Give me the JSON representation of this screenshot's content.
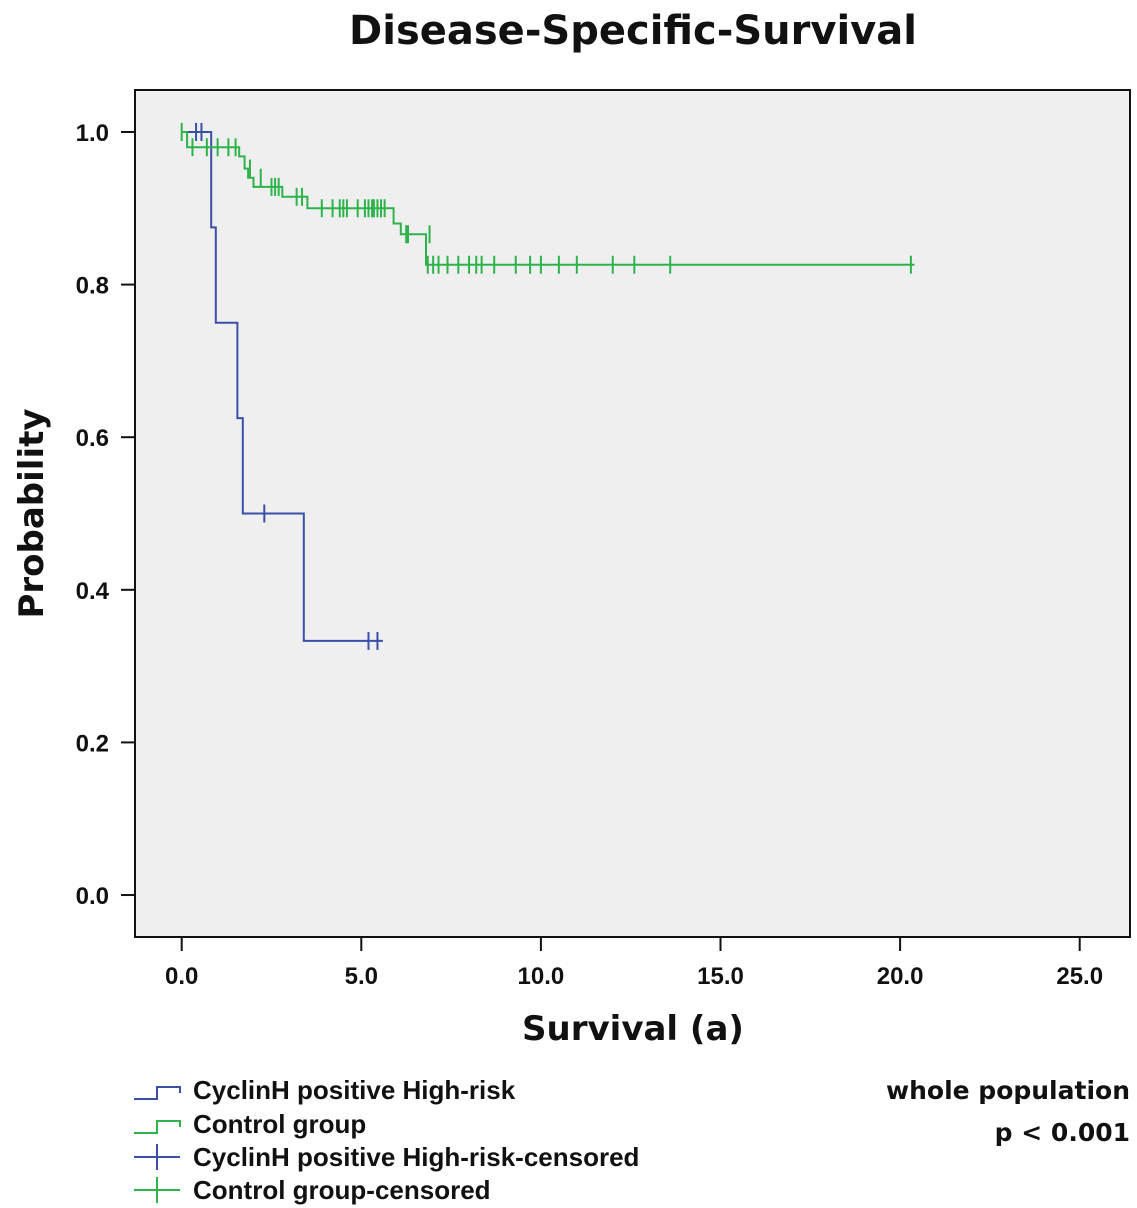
{
  "chart_data": {
    "type": "line",
    "subtype": "kaplan-meier",
    "title": "Disease-Specific-Survival",
    "xlabel": "Survival (a)",
    "ylabel": "Probability",
    "xlim": [
      -1.3,
      26.4
    ],
    "ylim": [
      -0.055,
      1.055
    ],
    "xticks": [
      0,
      5,
      10,
      15,
      20,
      25
    ],
    "xtick_labels": [
      "0.0",
      "5.0",
      "10.0",
      "15.0",
      "20.0",
      "25.0"
    ],
    "yticks": [
      0,
      0.2,
      0.4,
      0.6,
      0.8,
      1.0
    ],
    "ytick_labels": [
      "0.0",
      "0.2",
      "0.4",
      "0.6",
      "0.8",
      "1.0"
    ],
    "grid": false,
    "background": "#efefef",
    "series": [
      {
        "name": "CyclinH positive High-risk",
        "color": "#3a4fa8",
        "steps": [
          [
            0,
            1.0
          ],
          [
            0.82,
            1.0
          ],
          [
            0.82,
            0.875
          ],
          [
            0.95,
            0.875
          ],
          [
            0.95,
            0.75
          ],
          [
            1.55,
            0.75
          ],
          [
            1.55,
            0.625
          ],
          [
            1.7,
            0.625
          ],
          [
            1.7,
            0.5
          ],
          [
            3.4,
            0.5
          ],
          [
            3.4,
            0.333
          ],
          [
            5.6,
            0.333
          ]
        ],
        "censored": [
          [
            0.4,
            1.0
          ],
          [
            0.55,
            1.0
          ],
          [
            2.3,
            0.5
          ],
          [
            5.2,
            0.333
          ],
          [
            5.45,
            0.333
          ]
        ]
      },
      {
        "name": "Control group",
        "color": "#2db34a",
        "steps": [
          [
            0,
            1.0
          ],
          [
            0.15,
            1.0
          ],
          [
            0.15,
            0.98
          ],
          [
            1.6,
            0.98
          ],
          [
            1.6,
            0.968
          ],
          [
            1.75,
            0.968
          ],
          [
            1.75,
            0.952
          ],
          [
            1.85,
            0.952
          ],
          [
            1.85,
            0.94
          ],
          [
            2.0,
            0.94
          ],
          [
            2.0,
            0.928
          ],
          [
            2.8,
            0.928
          ],
          [
            2.8,
            0.915
          ],
          [
            3.5,
            0.915
          ],
          [
            3.5,
            0.9
          ],
          [
            5.9,
            0.9
          ],
          [
            5.9,
            0.88
          ],
          [
            6.1,
            0.88
          ],
          [
            6.1,
            0.866
          ],
          [
            6.8,
            0.866
          ],
          [
            6.8,
            0.826
          ],
          [
            20.4,
            0.826
          ]
        ],
        "censored": [
          [
            0,
            1.0
          ],
          [
            0.3,
            0.98
          ],
          [
            0.7,
            0.98
          ],
          [
            1.0,
            0.98
          ],
          [
            1.3,
            0.98
          ],
          [
            1.5,
            0.98
          ],
          [
            1.9,
            0.952
          ],
          [
            2.2,
            0.94
          ],
          [
            2.5,
            0.928
          ],
          [
            2.6,
            0.928
          ],
          [
            2.7,
            0.928
          ],
          [
            3.2,
            0.915
          ],
          [
            3.35,
            0.915
          ],
          [
            3.9,
            0.9
          ],
          [
            4.2,
            0.9
          ],
          [
            4.4,
            0.9
          ],
          [
            4.5,
            0.9
          ],
          [
            4.6,
            0.9
          ],
          [
            4.9,
            0.9
          ],
          [
            5.1,
            0.9
          ],
          [
            5.2,
            0.9
          ],
          [
            5.3,
            0.9
          ],
          [
            5.35,
            0.9
          ],
          [
            5.45,
            0.9
          ],
          [
            5.55,
            0.9
          ],
          [
            5.65,
            0.9
          ],
          [
            6.25,
            0.866
          ],
          [
            6.3,
            0.866
          ],
          [
            6.9,
            0.866
          ],
          [
            6.85,
            0.826
          ],
          [
            7.0,
            0.826
          ],
          [
            7.15,
            0.826
          ],
          [
            7.4,
            0.826
          ],
          [
            7.7,
            0.826
          ],
          [
            8.0,
            0.826
          ],
          [
            8.2,
            0.826
          ],
          [
            8.35,
            0.826
          ],
          [
            8.7,
            0.826
          ],
          [
            9.3,
            0.826
          ],
          [
            9.7,
            0.826
          ],
          [
            10.0,
            0.826
          ],
          [
            10.5,
            0.826
          ],
          [
            11.0,
            0.826
          ],
          [
            12.0,
            0.826
          ],
          [
            12.6,
            0.826
          ],
          [
            13.6,
            0.826
          ],
          [
            20.3,
            0.826
          ]
        ]
      }
    ],
    "legend": {
      "placement": "bottom-left",
      "entries": [
        {
          "label": "CyclinH positive High-risk",
          "kind": "line",
          "color": "#3a4fa8"
        },
        {
          "label": "Control group",
          "kind": "line",
          "color": "#2db34a"
        },
        {
          "label": "CyclinH positive High-risk-censored",
          "kind": "censor",
          "color": "#3a4fa8"
        },
        {
          "label": "Control group-censored",
          "kind": "censor",
          "color": "#2db34a"
        }
      ]
    },
    "annotations": [
      "whole population",
      "p < 0.001"
    ]
  }
}
